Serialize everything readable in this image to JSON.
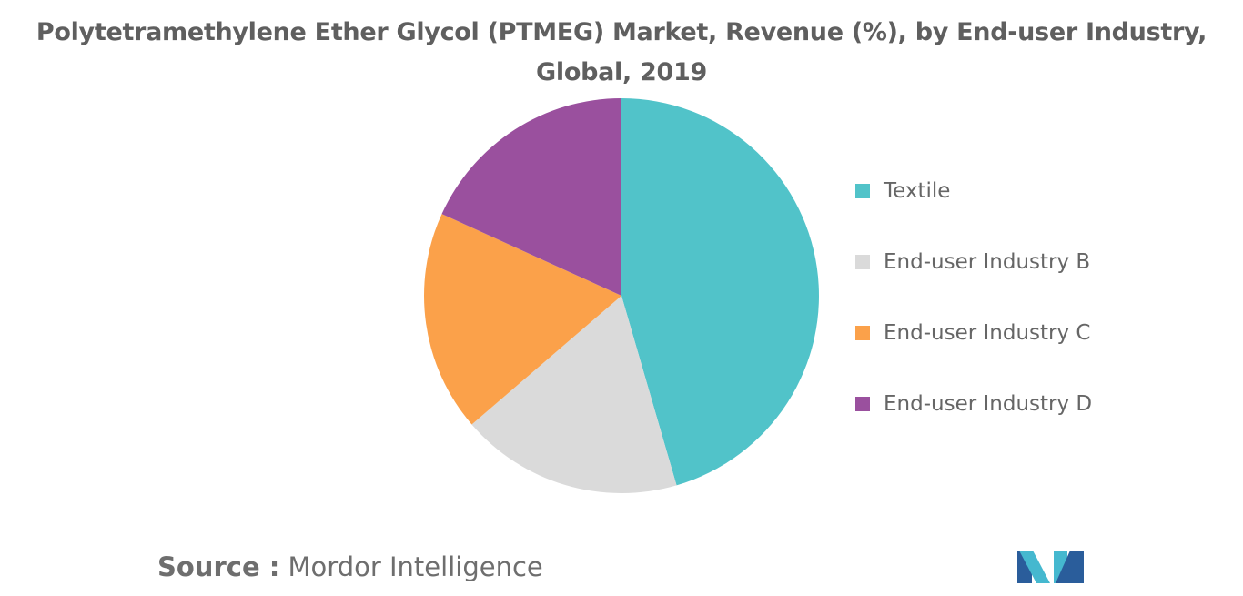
{
  "title": {
    "line1": "Polytetramethylene Ether Glycol (PTMEG) Market, Revenue (%), by End-user Industry,",
    "line2": "Global, 2019"
  },
  "chart_data": {
    "type": "pie",
    "title": "Polytetramethylene Ether Glycol (PTMEG) Market, Revenue (%), by End-user Industry, Global, 2019",
    "categories": [
      "Textile",
      "End-user Industry B",
      "End-user Industry C",
      "End-user Industry D"
    ],
    "values": [
      45.5,
      18.2,
      18.1,
      18.2
    ],
    "colors": [
      "#51c3c9",
      "#dadada",
      "#fba14a",
      "#9a509e"
    ],
    "legend_position": "right",
    "start": "top, clockwise"
  },
  "source": {
    "label": "Source :",
    "value": "Mordor Intelligence"
  },
  "logo": {
    "colors": [
      "#2a5d9b",
      "#45b8cf"
    ]
  }
}
